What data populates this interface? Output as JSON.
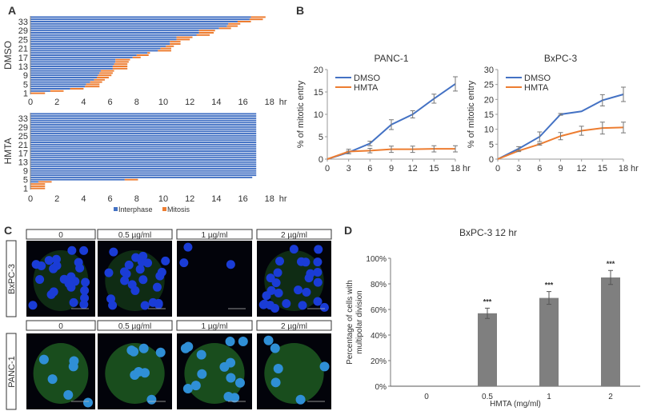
{
  "panel_labels": [
    "A",
    "B",
    "C",
    "D"
  ],
  "colors": {
    "interphase": "#4472c4",
    "mitosis": "#ed7d31",
    "dmso": "#4472c4",
    "hmta": "#ed7d31",
    "bar": "#7f7f7f",
    "nucleus": "#1a3cd6",
    "cytoplasm": "#2e8b2e"
  },
  "chart_data": [
    {
      "type": "bar",
      "orientation": "horizontal",
      "stacked": true,
      "group_label": "DMSO",
      "x_unit": "hr",
      "xlim": [
        0,
        18
      ],
      "xticks": [
        0,
        2,
        4,
        6,
        8,
        10,
        12,
        14,
        16,
        18
      ],
      "yticks": [
        1,
        5,
        9,
        13,
        17,
        21,
        25,
        29,
        33
      ],
      "series": [
        {
          "name": "Interphase",
          "values": [
            0,
            1.5,
            3.0,
            4.1,
            4.2,
            4.5,
            4.8,
            5.0,
            5.1,
            5.2,
            5.3,
            6.2,
            6.2,
            6.3,
            6.4,
            6.4,
            7.7,
            8.0,
            8.8,
            9.6,
            9.8,
            10.2,
            10.5,
            10.5,
            11.0,
            11.0,
            12.5,
            12.7,
            12.7,
            14.2,
            14.8,
            14.9,
            15.6,
            16.5,
            16.6
          ]
        },
        {
          "name": "Mitosis",
          "values": [
            1.1,
            1.0,
            1.0,
            1.1,
            1.0,
            0.9,
            0.8,
            0.9,
            1.0,
            1.0,
            1.0,
            1.1,
            1.1,
            1.0,
            1.0,
            1.1,
            0.6,
            0.9,
            0.2,
            1.0,
            0.8,
            0.6,
            0.8,
            0.8,
            1.0,
            1.2,
            1.0,
            1.1,
            1.2,
            0.9,
            0.8,
            0.9,
            1.0,
            1.0,
            1.1
          ]
        }
      ]
    },
    {
      "type": "bar",
      "orientation": "horizontal",
      "stacked": true,
      "group_label": "HMTA",
      "x_unit": "hr",
      "xlim": [
        0,
        18
      ],
      "xticks": [
        0,
        2,
        4,
        6,
        8,
        10,
        12,
        14,
        16,
        18
      ],
      "yticks": [
        1,
        5,
        9,
        13,
        17,
        21,
        25,
        29,
        33
      ],
      "legend": [
        "Interphase",
        "Mitosis"
      ],
      "legend_position": "bottom",
      "series": [
        {
          "name": "Interphase",
          "values": [
            0,
            0,
            0,
            0.6,
            7.1,
            16.7,
            17,
            17,
            17,
            17,
            17,
            17,
            17,
            17,
            17,
            17,
            17,
            17,
            17,
            17,
            17,
            17,
            17,
            17,
            17,
            17,
            17,
            17,
            17,
            17,
            17,
            17,
            17,
            17,
            17
          ]
        },
        {
          "name": "Mitosis",
          "values": [
            1.1,
            1.1,
            1.1,
            1.0,
            1.0,
            0,
            0,
            0,
            0,
            0,
            0,
            0,
            0,
            0,
            0,
            0,
            0,
            0,
            0,
            0,
            0,
            0,
            0,
            0,
            0,
            0,
            0,
            0,
            0,
            0,
            0,
            0,
            0,
            0,
            0
          ]
        }
      ]
    },
    {
      "type": "line",
      "title": "PANC-1",
      "ylabel": "% of mitotic entry",
      "x_unit": "hr",
      "x": [
        0,
        3,
        6,
        9,
        12,
        15,
        18
      ],
      "ylim": [
        0,
        20
      ],
      "yticks": [
        0,
        5,
        10,
        15,
        20
      ],
      "legend_position": "top-left",
      "series": [
        {
          "name": "DMSO",
          "values": [
            0,
            1.5,
            3.5,
            7.7,
            10.0,
            13.5,
            16.8
          ],
          "errors": [
            0,
            0.3,
            0.5,
            1.1,
            0.8,
            1.0,
            1.6
          ]
        },
        {
          "name": "HMTA",
          "values": [
            0,
            1.7,
            1.9,
            2.2,
            2.2,
            2.3,
            2.3
          ],
          "errors": [
            0,
            0.5,
            0.5,
            0.7,
            0.7,
            0.7,
            0.7
          ]
        }
      ]
    },
    {
      "type": "line",
      "title": "BxPC-3",
      "ylabel": "% of mitotic entry",
      "x_unit": "hr",
      "x": [
        0,
        3,
        6,
        9,
        12,
        15,
        18
      ],
      "ylim": [
        0,
        30
      ],
      "yticks": [
        0,
        5,
        10,
        15,
        20,
        25,
        30
      ],
      "legend_position": "top-left",
      "series": [
        {
          "name": "DMSO",
          "values": [
            0,
            3.5,
            7.5,
            15.0,
            16.0,
            19.7,
            21.7
          ],
          "errors": [
            0,
            0.7,
            1.6,
            0.3,
            0,
            1.9,
            2.4
          ]
        },
        {
          "name": "HMTA",
          "values": [
            0,
            2.8,
            5.0,
            7.7,
            9.5,
            10.4,
            10.6
          ],
          "errors": [
            0,
            0.3,
            0.3,
            1.2,
            1.5,
            2.0,
            1.8
          ]
        }
      ]
    },
    {
      "type": "bar",
      "title": "BxPC-3 12 hr",
      "xlabel": "HMTA (mg/ml)",
      "ylabel": "Percentage of cells with multipolar division",
      "categories": [
        "0",
        "0.5",
        "1",
        "2"
      ],
      "values": [
        0,
        57,
        69,
        85
      ],
      "errors": [
        0,
        4,
        5,
        5.5
      ],
      "annotations": [
        "",
        "***",
        "***",
        "***"
      ],
      "ylim": [
        0,
        100
      ],
      "yticks": [
        "0%",
        "20%",
        "40%",
        "60%",
        "80%",
        "100%"
      ]
    }
  ],
  "microscopy": {
    "columns": [
      "0",
      "0.5 µg/ml",
      "1 µg/ml",
      "2 µg/ml"
    ],
    "rows": [
      "BxPC-3",
      "PANC-1"
    ]
  }
}
